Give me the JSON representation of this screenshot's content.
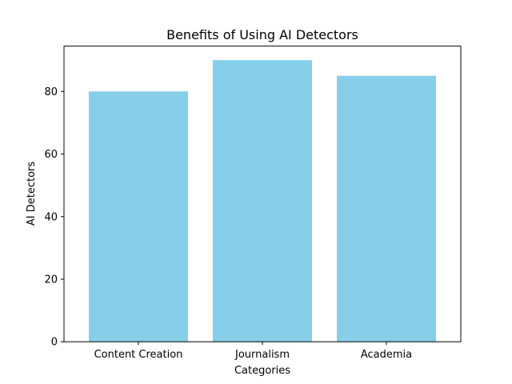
{
  "chart_data": {
    "type": "bar",
    "title": "Benefits of Using AI Detectors",
    "xlabel": "Categories",
    "ylabel": "AI Detectors",
    "categories": [
      "Content Creation",
      "Journalism",
      "Academia"
    ],
    "values": [
      80,
      90,
      85
    ],
    "ylim": [
      0,
      94.5
    ],
    "yticks": [
      0,
      20,
      40,
      60,
      80
    ],
    "bar_color": "#87ceeb",
    "grid": false,
    "legend": "none"
  }
}
